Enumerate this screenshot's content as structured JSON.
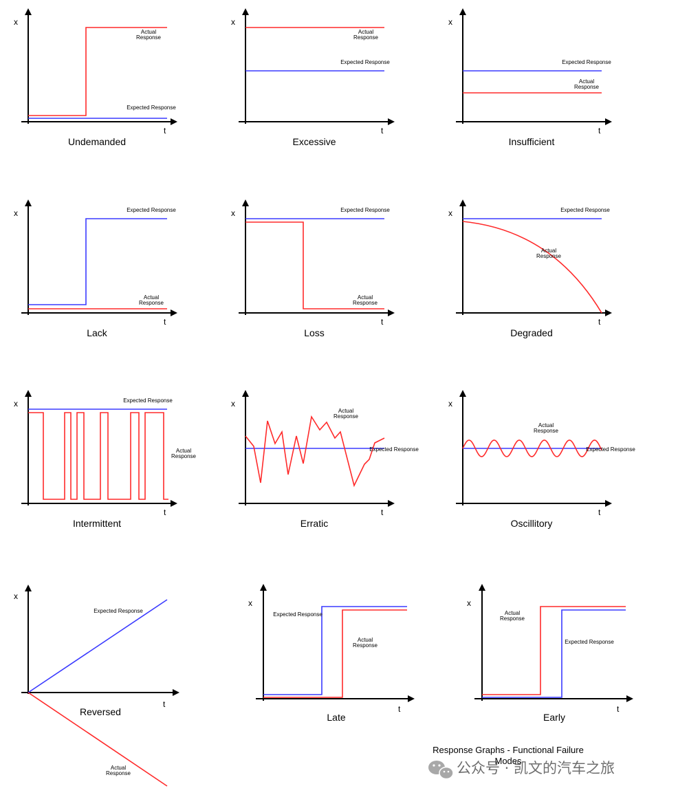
{
  "axis": {
    "x_label": "x",
    "t_label": "t"
  },
  "labels": {
    "actual": "Actual Response",
    "expected": "Expected Response"
  },
  "colors": {
    "expected": "#3a3aff",
    "actual": "#ff2a2a",
    "axis": "#000000"
  },
  "graphs": [
    {
      "id": "undemanded",
      "title": "Undemanded"
    },
    {
      "id": "excessive",
      "title": "Excessive"
    },
    {
      "id": "insufficient",
      "title": "Insufficient"
    },
    {
      "id": "lack",
      "title": "Lack"
    },
    {
      "id": "loss",
      "title": "Loss"
    },
    {
      "id": "degraded",
      "title": "Degraded"
    },
    {
      "id": "intermittent",
      "title": "Intermittent"
    },
    {
      "id": "erratic",
      "title": "Erratic"
    },
    {
      "id": "oscillitory",
      "title": "Oscillitory"
    },
    {
      "id": "reversed",
      "title": "Reversed"
    },
    {
      "id": "late",
      "title": "Late"
    },
    {
      "id": "early",
      "title": "Early"
    }
  ],
  "caption": "Response Graphs - Functional Failure Modes",
  "watermark": {
    "icon": "wechat-icon",
    "text": "公众号 · 凯文的汽车之旅"
  }
}
